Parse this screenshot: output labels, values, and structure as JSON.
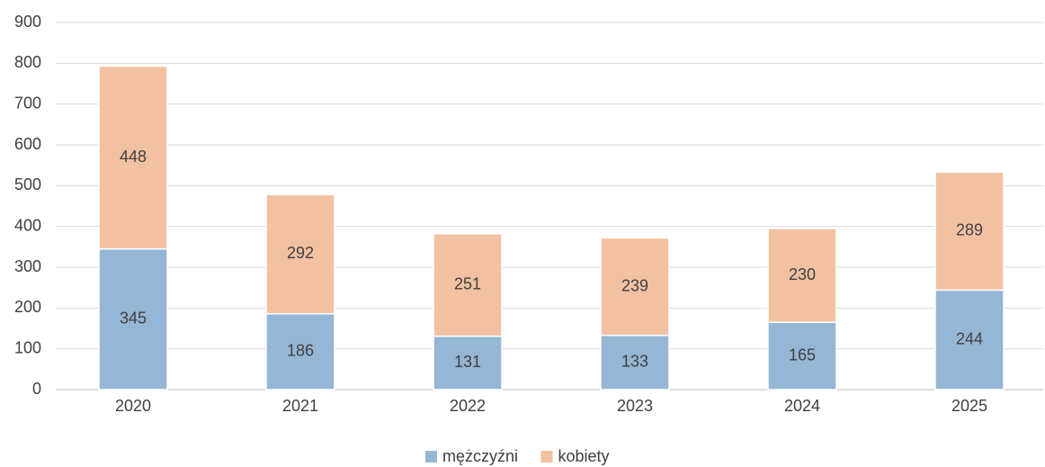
{
  "chart_data": {
    "type": "stacked_bar",
    "categories": [
      "2020",
      "2021",
      "2022",
      "2023",
      "2024",
      "2025"
    ],
    "series": [
      {
        "name": "mężczyźni",
        "color": "#95b6d5",
        "values": [
          345,
          186,
          131,
          133,
          165,
          244
        ]
      },
      {
        "name": "kobiety",
        "color": "#f2c1a2",
        "values": [
          448,
          292,
          251,
          239,
          230,
          289
        ]
      }
    ],
    "ylim": [
      0,
      900
    ],
    "yticks": [
      0,
      100,
      200,
      300,
      400,
      500,
      600,
      700,
      800,
      900
    ],
    "grid": true,
    "legend": "bottom"
  }
}
